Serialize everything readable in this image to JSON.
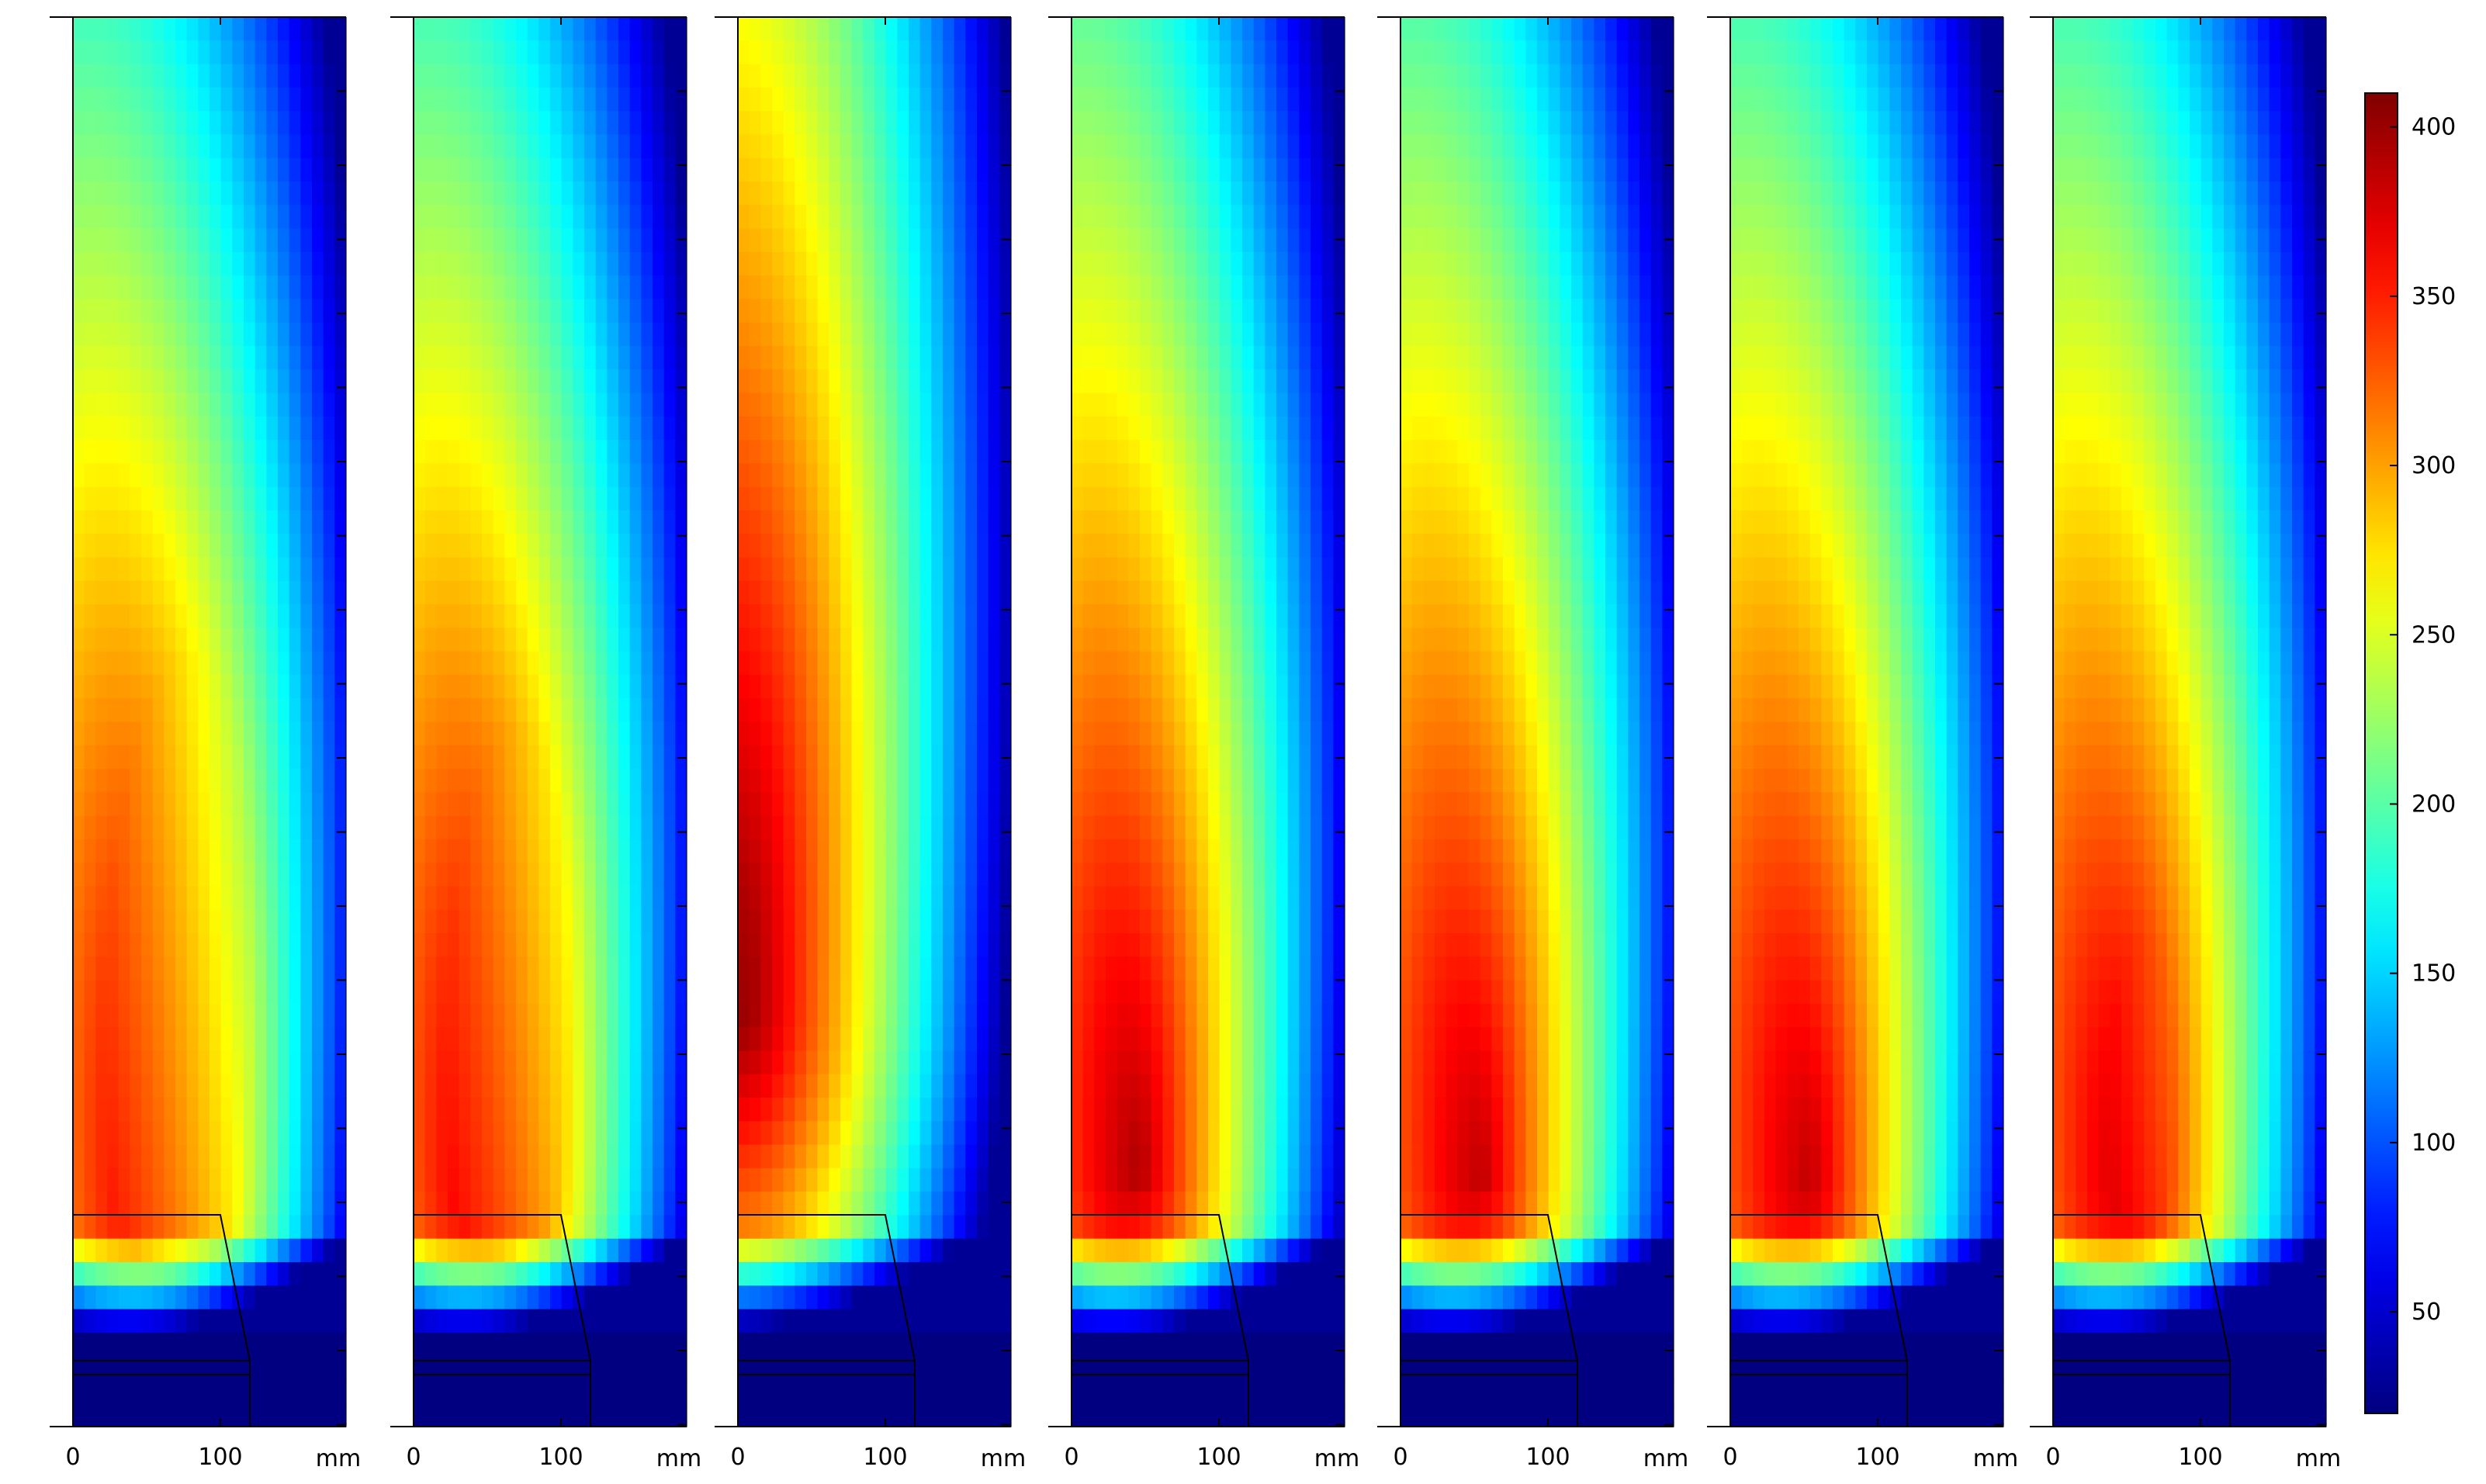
{
  "chart_data": {
    "type": "heatmap",
    "description_units": "mm",
    "panels": [
      {
        "hot_spot": [
          0.33,
          0.835
        ],
        "hot_radius": [
          0.55,
          0.1
        ],
        "plume_shift": 0.0,
        "top_level": 0.58
      },
      {
        "hot_spot": [
          0.3,
          0.83
        ],
        "hot_radius": [
          0.55,
          0.1
        ],
        "plume_shift": 0.04,
        "top_level": 0.6
      },
      {
        "hot_spot": [
          0.0,
          0.7
        ],
        "hot_radius": [
          0.62,
          0.22
        ],
        "plume_shift": 0.1,
        "top_level": 0.7
      },
      {
        "hot_spot": [
          0.25,
          0.82
        ],
        "hot_radius": [
          0.55,
          0.12
        ],
        "plume_shift": 0.16,
        "top_level": 0.78
      },
      {
        "hot_spot": [
          0.3,
          0.825
        ],
        "hot_radius": [
          0.55,
          0.11
        ],
        "plume_shift": 0.16,
        "top_level": 0.76
      },
      {
        "hot_spot": [
          0.3,
          0.83
        ],
        "hot_radius": [
          0.55,
          0.1
        ],
        "plume_shift": 0.1,
        "top_level": 0.72
      },
      {
        "hot_spot": [
          0.3,
          0.83
        ],
        "hot_radius": [
          0.55,
          0.1
        ],
        "plume_shift": 0.06,
        "top_level": 0.66
      }
    ],
    "x_tick_labels": [
      "0",
      "100"
    ],
    "x_unit": "mm",
    "xlim": [
      0,
      185
    ],
    "colorbar": {
      "range": [
        20,
        410
      ],
      "tick_labels": [
        "400",
        "350",
        "300",
        "250",
        "200",
        "150",
        "100",
        "50"
      ],
      "tick_values": [
        400,
        350,
        300,
        250,
        200,
        150,
        100,
        50
      ],
      "colormap": "jet"
    }
  }
}
